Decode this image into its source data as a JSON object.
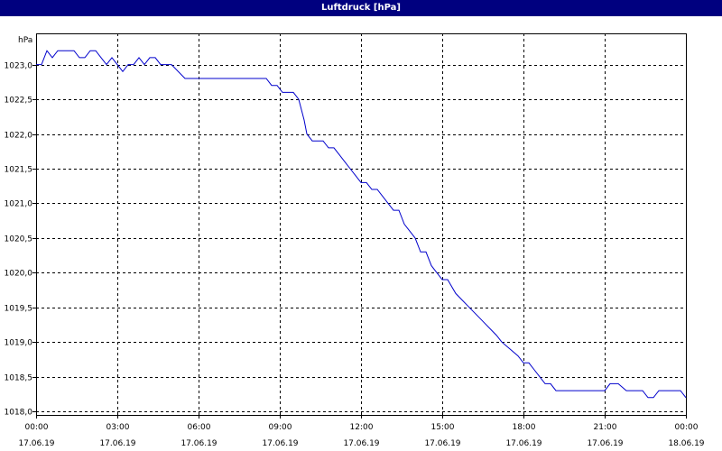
{
  "chart_data": {
    "type": "line",
    "title": "Luftdruck [hPa]",
    "ylabel": "hPa",
    "xlabel": "",
    "ylim": [
      1017.95,
      1023.45
    ],
    "xlim": [
      0,
      24
    ],
    "grid": true,
    "y_ticks": [
      "1018,0",
      "1018,5",
      "1019,0",
      "1019,5",
      "1020,0",
      "1020,5",
      "1021,0",
      "1021,5",
      "1022,0",
      "1022,5",
      "1023,0"
    ],
    "y_tick_values": [
      1018.0,
      1018.5,
      1019.0,
      1019.5,
      1020.0,
      1020.5,
      1021.0,
      1021.5,
      1022.0,
      1022.5,
      1023.0
    ],
    "x_tick_times": [
      "00:00",
      "03:00",
      "06:00",
      "09:00",
      "12:00",
      "15:00",
      "18:00",
      "21:00",
      "00:00"
    ],
    "x_tick_dates": [
      "17.06.19",
      "17.06.19",
      "17.06.19",
      "17.06.19",
      "17.06.19",
      "17.06.19",
      "17.06.19",
      "17.06.19",
      "18.06.19"
    ],
    "x_tick_hours": [
      0,
      3,
      6,
      9,
      12,
      15,
      18,
      21,
      24
    ],
    "series": [
      {
        "color": "#0000cc",
        "x": [
          0,
          0.2,
          0.4,
          0.6,
          0.8,
          1.0,
          1.2,
          1.4,
          1.6,
          1.8,
          2.0,
          2.2,
          2.4,
          2.6,
          2.8,
          3.0,
          3.2,
          3.4,
          3.6,
          3.8,
          4.0,
          4.2,
          4.4,
          4.6,
          4.8,
          5.0,
          5.5,
          6.0,
          6.5,
          7.0,
          7.5,
          8.0,
          8.5,
          8.7,
          8.9,
          9.1,
          9.3,
          9.5,
          9.7,
          9.9,
          10.0,
          10.2,
          10.4,
          10.6,
          10.8,
          11.0,
          11.2,
          11.4,
          11.6,
          11.8,
          12.0,
          12.2,
          12.4,
          12.6,
          12.8,
          13.0,
          13.2,
          13.4,
          13.6,
          13.8,
          14.0,
          14.2,
          14.4,
          14.6,
          14.8,
          15.0,
          15.2,
          15.5,
          16.0,
          16.5,
          17.0,
          17.2,
          17.5,
          17.8,
          18.0,
          18.2,
          18.4,
          18.6,
          18.8,
          19.0,
          19.2,
          19.5,
          20.0,
          20.5,
          21.0,
          21.2,
          21.5,
          21.8,
          22.0,
          22.2,
          22.4,
          22.6,
          22.8,
          23.0,
          23.2,
          23.4,
          23.6,
          23.8,
          24.0
        ],
        "y": [
          1023.0,
          1023.0,
          1023.2,
          1023.1,
          1023.2,
          1023.2,
          1023.2,
          1023.2,
          1023.1,
          1023.1,
          1023.2,
          1023.2,
          1023.1,
          1023.0,
          1023.1,
          1023.0,
          1022.9,
          1023.0,
          1023.0,
          1023.1,
          1023.0,
          1023.1,
          1023.1,
          1023.0,
          1023.0,
          1023.0,
          1022.8,
          1022.8,
          1022.8,
          1022.8,
          1022.8,
          1022.8,
          1022.8,
          1022.7,
          1022.7,
          1022.6,
          1022.6,
          1022.6,
          1022.5,
          1022.2,
          1022.0,
          1021.9,
          1021.9,
          1021.9,
          1021.8,
          1021.8,
          1021.7,
          1021.6,
          1021.5,
          1021.4,
          1021.3,
          1021.3,
          1021.2,
          1021.2,
          1021.1,
          1021.0,
          1020.9,
          1020.9,
          1020.7,
          1020.6,
          1020.5,
          1020.3,
          1020.3,
          1020.1,
          1020.0,
          1019.9,
          1019.9,
          1019.7,
          1019.5,
          1019.3,
          1019.1,
          1019.0,
          1018.9,
          1018.8,
          1018.7,
          1018.7,
          1018.6,
          1018.5,
          1018.4,
          1018.4,
          1018.3,
          1018.3,
          1018.3,
          1018.3,
          1018.3,
          1018.4,
          1018.4,
          1018.3,
          1018.3,
          1018.3,
          1018.3,
          1018.2,
          1018.2,
          1018.3,
          1018.3,
          1018.3,
          1018.3,
          1018.3,
          1018.2
        ]
      }
    ]
  }
}
